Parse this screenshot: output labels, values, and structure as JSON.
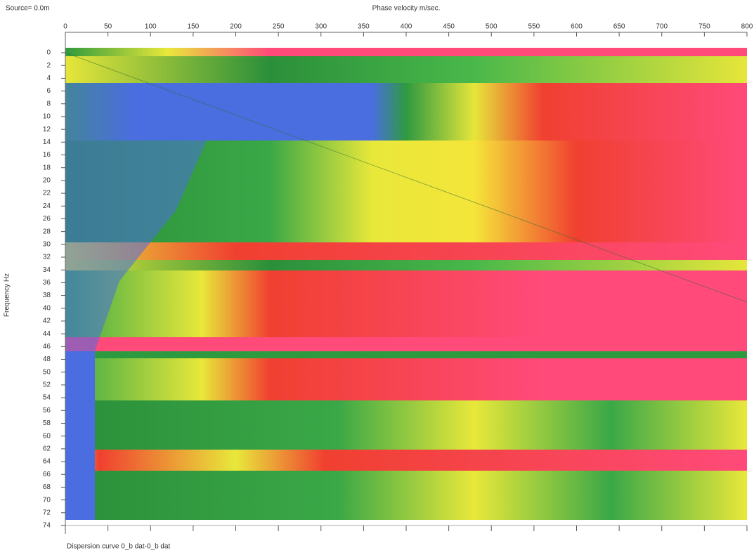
{
  "chart_data": {
    "type": "heatmap",
    "source_label": "Source= 0.0m",
    "x_label": "Phase velocity m/sec.",
    "y_label": "Frequency Hz",
    "caption": "Dispersion curve  0_b dat-0_b dat",
    "xlim": [
      0,
      800
    ],
    "xticks": [
      0,
      50,
      100,
      150,
      200,
      250,
      300,
      350,
      400,
      450,
      500,
      550,
      600,
      650,
      700,
      750,
      800
    ],
    "ylim": [
      0,
      74
    ],
    "y_inverted": true,
    "yticks": [
      0,
      2,
      4,
      6,
      8,
      10,
      12,
      14,
      16,
      18,
      20,
      22,
      24,
      26,
      28,
      30,
      32,
      34,
      36,
      38,
      40,
      42,
      44,
      46,
      48,
      50,
      52,
      54,
      56,
      58,
      60,
      62,
      64,
      66,
      68,
      70,
      72,
      74
    ]
  }
}
